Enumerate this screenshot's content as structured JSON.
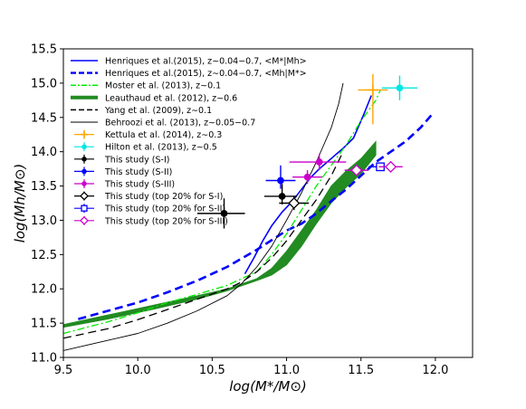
{
  "chart_data": {
    "type": "line",
    "xlabel": "log(M*/M⊙)",
    "ylabel": "log(Mh/M⊙)",
    "xlim": [
      9.5,
      12.25
    ],
    "ylim": [
      11.0,
      15.5
    ],
    "xticks": [
      "9.5",
      "10.0",
      "10.5",
      "11.0",
      "11.5",
      "12.0"
    ],
    "yticks": [
      "11.0",
      "11.5",
      "12.0",
      "12.5",
      "13.0",
      "13.5",
      "14.0",
      "14.5",
      "15.0",
      "15.5"
    ],
    "grid": false,
    "legend_position": "top-left",
    "lines": [
      {
        "name": "Henriques et al.(2015), z∼0.04−0.7, <M*|Mh>",
        "color": "#0000ff",
        "style": "solid",
        "width": 1.6,
        "points": [
          [
            10.72,
            12.22
          ],
          [
            10.78,
            12.45
          ],
          [
            10.84,
            12.7
          ],
          [
            10.9,
            12.92
          ],
          [
            10.97,
            13.12
          ],
          [
            11.04,
            13.28
          ],
          [
            11.1,
            13.45
          ],
          [
            11.16,
            13.62
          ],
          [
            11.22,
            13.75
          ],
          [
            11.3,
            13.9
          ],
          [
            11.38,
            14.05
          ],
          [
            11.45,
            14.2
          ],
          [
            11.52,
            14.55
          ],
          [
            11.57,
            14.82
          ]
        ]
      },
      {
        "name": "Henriques et al.(2015), z∼0.04−0.7, <Mh|M*>",
        "color": "#0000ff",
        "style": "dashed",
        "width": 2.6,
        "points": [
          [
            9.6,
            11.56
          ],
          [
            9.8,
            11.68
          ],
          [
            10.0,
            11.8
          ],
          [
            10.2,
            11.95
          ],
          [
            10.4,
            12.12
          ],
          [
            10.6,
            12.32
          ],
          [
            10.8,
            12.57
          ],
          [
            11.0,
            12.85
          ],
          [
            11.1,
            12.95
          ],
          [
            11.2,
            13.1
          ],
          [
            11.3,
            13.28
          ],
          [
            11.4,
            13.45
          ],
          [
            11.5,
            13.65
          ],
          [
            11.6,
            13.85
          ],
          [
            11.7,
            14.0
          ],
          [
            11.8,
            14.15
          ],
          [
            11.9,
            14.35
          ],
          [
            11.98,
            14.55
          ]
        ]
      },
      {
        "name": "Moster et al. (2013), z∼0.1",
        "color": "#00ee00",
        "style": "dashdot",
        "width": 1.3,
        "points": [
          [
            9.5,
            11.35
          ],
          [
            9.8,
            11.52
          ],
          [
            10.0,
            11.65
          ],
          [
            10.2,
            11.8
          ],
          [
            10.4,
            11.92
          ],
          [
            10.6,
            12.05
          ],
          [
            10.8,
            12.25
          ],
          [
            10.9,
            12.5
          ],
          [
            11.0,
            12.8
          ],
          [
            11.1,
            13.15
          ],
          [
            11.2,
            13.5
          ],
          [
            11.3,
            13.8
          ],
          [
            11.4,
            14.1
          ],
          [
            11.5,
            14.45
          ],
          [
            11.6,
            14.75
          ],
          [
            11.63,
            14.9
          ]
        ]
      },
      {
        "name": "Yang et al. (2009), z∼0.1",
        "color": "#000000",
        "style": "dashed",
        "width": 1.3,
        "points": [
          [
            9.5,
            11.28
          ],
          [
            9.8,
            11.42
          ],
          [
            10.0,
            11.55
          ],
          [
            10.2,
            11.7
          ],
          [
            10.4,
            11.85
          ],
          [
            10.6,
            12.0
          ],
          [
            10.7,
            12.1
          ],
          [
            10.8,
            12.25
          ],
          [
            10.9,
            12.45
          ],
          [
            11.0,
            12.7
          ],
          [
            11.1,
            13.0
          ],
          [
            11.2,
            13.3
          ],
          [
            11.3,
            13.65
          ],
          [
            11.38,
            14.0
          ]
        ]
      },
      {
        "name": "Behroozi et al. (2013), z∼0.05−0.7",
        "color": "#000000",
        "style": "solid",
        "width": 0.9,
        "points": [
          [
            9.5,
            11.1
          ],
          [
            9.8,
            11.25
          ],
          [
            10.0,
            11.35
          ],
          [
            10.2,
            11.5
          ],
          [
            10.4,
            11.68
          ],
          [
            10.6,
            11.9
          ],
          [
            10.7,
            12.08
          ],
          [
            10.8,
            12.32
          ],
          [
            10.9,
            12.62
          ],
          [
            11.0,
            13.0
          ],
          [
            11.1,
            13.4
          ],
          [
            11.2,
            13.85
          ],
          [
            11.3,
            14.35
          ],
          [
            11.35,
            14.7
          ],
          [
            11.38,
            15.0
          ]
        ]
      }
    ],
    "bands": [
      {
        "name": "Leauthaud et al. (2012), z∼0.6",
        "color": "#228b22",
        "upper": [
          [
            9.5,
            11.48
          ],
          [
            9.8,
            11.62
          ],
          [
            10.1,
            11.76
          ],
          [
            10.4,
            11.9
          ],
          [
            10.6,
            12.0
          ],
          [
            10.8,
            12.15
          ],
          [
            10.9,
            12.3
          ],
          [
            11.0,
            12.55
          ],
          [
            11.1,
            12.85
          ],
          [
            11.2,
            13.15
          ],
          [
            11.3,
            13.5
          ],
          [
            11.4,
            13.72
          ],
          [
            11.5,
            13.9
          ],
          [
            11.6,
            14.15
          ]
        ],
        "lower": [
          [
            9.5,
            11.44
          ],
          [
            9.8,
            11.56
          ],
          [
            10.1,
            11.7
          ],
          [
            10.4,
            11.85
          ],
          [
            10.6,
            11.97
          ],
          [
            10.8,
            12.12
          ],
          [
            10.9,
            12.2
          ],
          [
            11.0,
            12.35
          ],
          [
            11.1,
            12.62
          ],
          [
            11.2,
            12.95
          ],
          [
            11.3,
            13.25
          ],
          [
            11.4,
            13.48
          ],
          [
            11.5,
            13.68
          ],
          [
            11.6,
            13.95
          ]
        ]
      }
    ],
    "points": [
      {
        "name": "Kettula et al. (2014), z∼0.3",
        "color": "#ffa500",
        "marker": "plus",
        "x": 11.58,
        "y": 14.9,
        "xerr": [
          0.1,
          0.1
        ],
        "yerr": [
          0.5,
          0.23
        ]
      },
      {
        "name": "Hilton et al. (2013), z∼0.5",
        "color": "#00e5e5",
        "marker": "dot",
        "x": 11.76,
        "y": 14.93,
        "xerr": [
          0.12,
          0.12
        ],
        "yerr": [
          0.18,
          0.18
        ]
      },
      {
        "name": "This study (S-I)",
        "color": "#000000",
        "marker": "dot",
        "x": 10.58,
        "y": 13.1,
        "xerr": [
          0.18,
          0.14
        ],
        "yerr": [
          0.22,
          0.22
        ]
      },
      {
        "name": "This study (S-I)",
        "color": "#000000",
        "marker": "dot",
        "x": 10.97,
        "y": 13.35,
        "xerr": [
          0.12,
          0.1
        ],
        "yerr": [
          0.12,
          0.18
        ]
      },
      {
        "name": "This study (S-II)",
        "color": "#0000ff",
        "marker": "dot",
        "x": 10.96,
        "y": 13.58,
        "xerr": [
          0.1,
          0.1
        ],
        "yerr": [
          0.12,
          0.22
        ]
      },
      {
        "name": "This study (S-III)",
        "color": "#cc00cc",
        "marker": "dot",
        "x": 11.22,
        "y": 13.85,
        "xerr": [
          0.2,
          0.18
        ],
        "yerr": [
          0.12,
          0.12
        ]
      },
      {
        "name": "This study (S-III)",
        "color": "#cc00cc",
        "marker": "dot",
        "x": 11.14,
        "y": 13.63,
        "xerr": [
          0.1,
          0.1
        ],
        "yerr": [
          0.1,
          0.1
        ]
      },
      {
        "name": "This study (top 20% for S-I)",
        "color": "#000000",
        "marker": "open-diamond",
        "x": 11.05,
        "y": 13.25,
        "xerr": [
          0.1,
          0.1
        ],
        "yerr": [
          0.1,
          0.1
        ]
      },
      {
        "name": "This study (top 20% for S-II)",
        "color": "#0000ff",
        "marker": "open-square",
        "x": 11.63,
        "y": 13.78,
        "xerr": [
          0.08,
          0.08
        ],
        "yerr": [
          0.06,
          0.06
        ]
      },
      {
        "name": "This study (top 20% for S-III)",
        "color": "#cc00cc",
        "marker": "open-diamond",
        "x": 11.7,
        "y": 13.78,
        "xerr": [
          0.08,
          0.08
        ],
        "yerr": [
          0.08,
          0.08
        ]
      },
      {
        "name": "This study (top 20% for S-III)",
        "color": "#cc00cc",
        "marker": "open-diamond",
        "x": 11.47,
        "y": 13.73,
        "xerr": [
          0.08,
          0.08
        ],
        "yerr": [
          0.08,
          0.08
        ]
      }
    ],
    "legend": [
      {
        "label": "Henriques et al.(2015), z∼0.04−0.7, <M*|Mh>",
        "color": "#0000ff",
        "kind": "line-solid"
      },
      {
        "label": "Henriques et al.(2015), z∼0.04−0.7, <Mh|M*>",
        "color": "#0000ff",
        "kind": "line-dashed"
      },
      {
        "label": "Moster et al. (2013), z∼0.1",
        "color": "#00ee00",
        "kind": "line-dashdot"
      },
      {
        "label": "Leauthaud et al. (2012), z∼0.6",
        "color": "#228b22",
        "kind": "line-thick"
      },
      {
        "label": "Yang et al. (2009), z∼0.1",
        "color": "#000000",
        "kind": "line-dashed"
      },
      {
        "label": "Behroozi et al. (2013), z∼0.05−0.7",
        "color": "#000000",
        "kind": "line-thin"
      },
      {
        "label": "Kettula et al. (2014), z∼0.3",
        "color": "#ffa500",
        "kind": "plus"
      },
      {
        "label": "Hilton et al. (2013), z∼0.5",
        "color": "#00e5e5",
        "kind": "dot"
      },
      {
        "label": "This study (S-I)",
        "color": "#000000",
        "kind": "dot"
      },
      {
        "label": "This study (S-II)",
        "color": "#0000ff",
        "kind": "dot"
      },
      {
        "label": "This study (S-III)",
        "color": "#cc00cc",
        "kind": "dot"
      },
      {
        "label": "This study (top 20% for S-I)",
        "color": "#000000",
        "kind": "open-diamond"
      },
      {
        "label": "This study (top 20% for S-II)",
        "color": "#0000ff",
        "kind": "open-square"
      },
      {
        "label": "This study (top 20% for S-III)",
        "color": "#cc00cc",
        "kind": "open-diamond"
      }
    ]
  }
}
